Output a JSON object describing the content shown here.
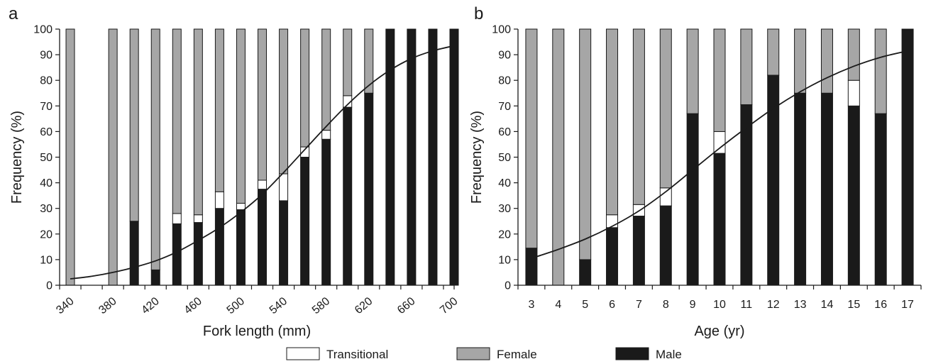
{
  "colors": {
    "male": "#1a1a1a",
    "female": "#a6a6a6",
    "transitional": "#ffffff",
    "axis": "#1a1a1a"
  },
  "legend": [
    {
      "key": "transitional",
      "label": "Transitional"
    },
    {
      "key": "female",
      "label": "Female"
    },
    {
      "key": "male",
      "label": "Male"
    }
  ],
  "chart_data": [
    {
      "panel": "a",
      "type": "bar",
      "stacked": true,
      "xlabel": "Fork length (mm)",
      "ylabel": "Frequency (%)",
      "ylim": [
        0,
        100
      ],
      "yticks": [
        0,
        10,
        20,
        30,
        40,
        50,
        60,
        70,
        80,
        90,
        100
      ],
      "x_tick_labels": [
        "340",
        "380",
        "420",
        "460",
        "500",
        "540",
        "580",
        "620",
        "660",
        "700"
      ],
      "x_tick_rotation": -40,
      "categories": [
        "340",
        "360",
        "380",
        "400",
        "420",
        "440",
        "460",
        "480",
        "500",
        "520",
        "540",
        "560",
        "580",
        "600",
        "620",
        "640",
        "660",
        "680",
        "700"
      ],
      "series": [
        {
          "name": "Male",
          "key": "male",
          "values": [
            0,
            0,
            0,
            25,
            6,
            24,
            24.5,
            30,
            29.5,
            37.5,
            33,
            50,
            57,
            69.5,
            75,
            100,
            100,
            100,
            100
          ]
        },
        {
          "name": "Transitional",
          "key": "transitional",
          "values": [
            0,
            0,
            0,
            0,
            0,
            4,
            3,
            6.5,
            2.5,
            3.5,
            10.5,
            4,
            3.5,
            4.5,
            0,
            0,
            0,
            0,
            0
          ]
        },
        {
          "name": "Female",
          "key": "female",
          "values": [
            100,
            0,
            100,
            75,
            94,
            72,
            72.5,
            63.5,
            68,
            59,
            56.5,
            46,
            39.5,
            26,
            25,
            0,
            0,
            0,
            0
          ]
        }
      ],
      "curve": {
        "x": [
          340,
          360,
          380,
          400,
          420,
          440,
          460,
          480,
          500,
          520,
          540,
          560,
          580,
          600,
          620,
          640,
          660,
          680,
          700
        ],
        "y": [
          2.5,
          3.5,
          5,
          7,
          9.5,
          13,
          17.5,
          22.5,
          28.5,
          35.5,
          44,
          53,
          62,
          70.5,
          78,
          84,
          88.5,
          91.5,
          93.5
        ]
      }
    },
    {
      "panel": "b",
      "type": "bar",
      "stacked": true,
      "xlabel": "Age (yr)",
      "ylabel": "Frequency (%)",
      "ylim": [
        0,
        100
      ],
      "yticks": [
        0,
        10,
        20,
        30,
        40,
        50,
        60,
        70,
        80,
        90,
        100
      ],
      "x_tick_labels": [
        "3",
        "4",
        "5",
        "6",
        "7",
        "8",
        "9",
        "10",
        "11",
        "12",
        "13",
        "14",
        "15",
        "16",
        "17"
      ],
      "x_tick_rotation": 0,
      "categories": [
        "3",
        "4",
        "5",
        "6",
        "7",
        "8",
        "9",
        "10",
        "11",
        "12",
        "13",
        "14",
        "15",
        "16",
        "17"
      ],
      "series": [
        {
          "name": "Male",
          "key": "male",
          "values": [
            14.5,
            0,
            10,
            22.5,
            27,
            31,
            67,
            51.5,
            70.5,
            82,
            75,
            75,
            70,
            67,
            100
          ]
        },
        {
          "name": "Transitional",
          "key": "transitional",
          "values": [
            0,
            0,
            0,
            5,
            4.5,
            7,
            0,
            8.5,
            0,
            0,
            0,
            0,
            10,
            0,
            0
          ]
        },
        {
          "name": "Female",
          "key": "female",
          "values": [
            85.5,
            100,
            90,
            72.5,
            68.5,
            62,
            33,
            40,
            29.5,
            18,
            25,
            25,
            20,
            33,
            0
          ]
        }
      ],
      "curve": {
        "x": [
          3,
          4,
          5,
          6,
          7,
          8,
          9,
          10,
          11,
          12,
          13,
          14,
          15,
          16,
          17
        ],
        "y": [
          10.5,
          14,
          18,
          23,
          29,
          36.5,
          45,
          53.5,
          61.5,
          69,
          75.5,
          81,
          85.5,
          89,
          91.5
        ]
      }
    }
  ]
}
